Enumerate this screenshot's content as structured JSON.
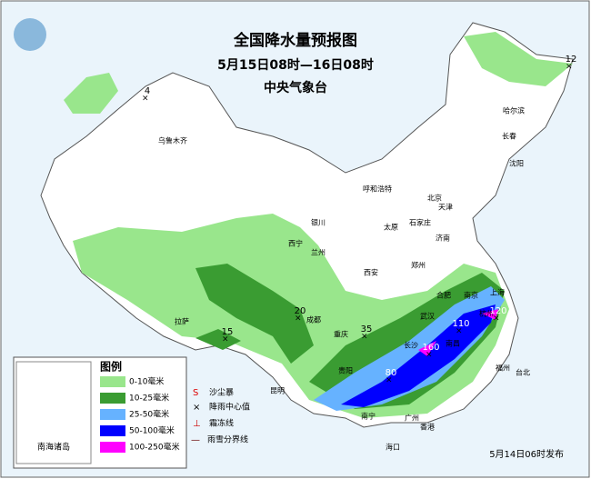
{
  "header": {
    "title": "全国降水量预报图",
    "period": "5月15日08时—16日08时",
    "issuer": "中央气象台"
  },
  "legend": {
    "title": "图例",
    "items": [
      {
        "label": "0-10毫米",
        "color": "#99e68c"
      },
      {
        "label": "10-25毫米",
        "color": "#3a9c32"
      },
      {
        "label": "25-50毫米",
        "color": "#66b2ff"
      },
      {
        "label": "50-100毫米",
        "color": "#0000ff"
      },
      {
        "label": "100-250毫米",
        "color": "#ff00ff"
      }
    ],
    "symbols": [
      "沙尘暴",
      "降雨中心值",
      "霜冻线",
      "雨雪分界线"
    ]
  },
  "inset": "南海诸岛",
  "cities": [
    "乌鲁木齐",
    "哈尔滨",
    "长春",
    "沈阳",
    "呼和浩特",
    "北京",
    "天津",
    "石家庄",
    "太原",
    "银川",
    "西宁",
    "兰州",
    "济南",
    "郑州",
    "西安",
    "合肥",
    "南京",
    "上海",
    "杭州",
    "武汉",
    "成都",
    "重庆",
    "长沙",
    "南昌",
    "贵阳",
    "昆明",
    "拉萨",
    "南宁",
    "广州",
    "香港",
    "福州",
    "台北",
    "海口"
  ],
  "rain_centers": [
    4,
    12,
    15,
    20,
    35,
    80,
    110,
    120,
    160
  ],
  "footer": "5月14日06时发布"
}
